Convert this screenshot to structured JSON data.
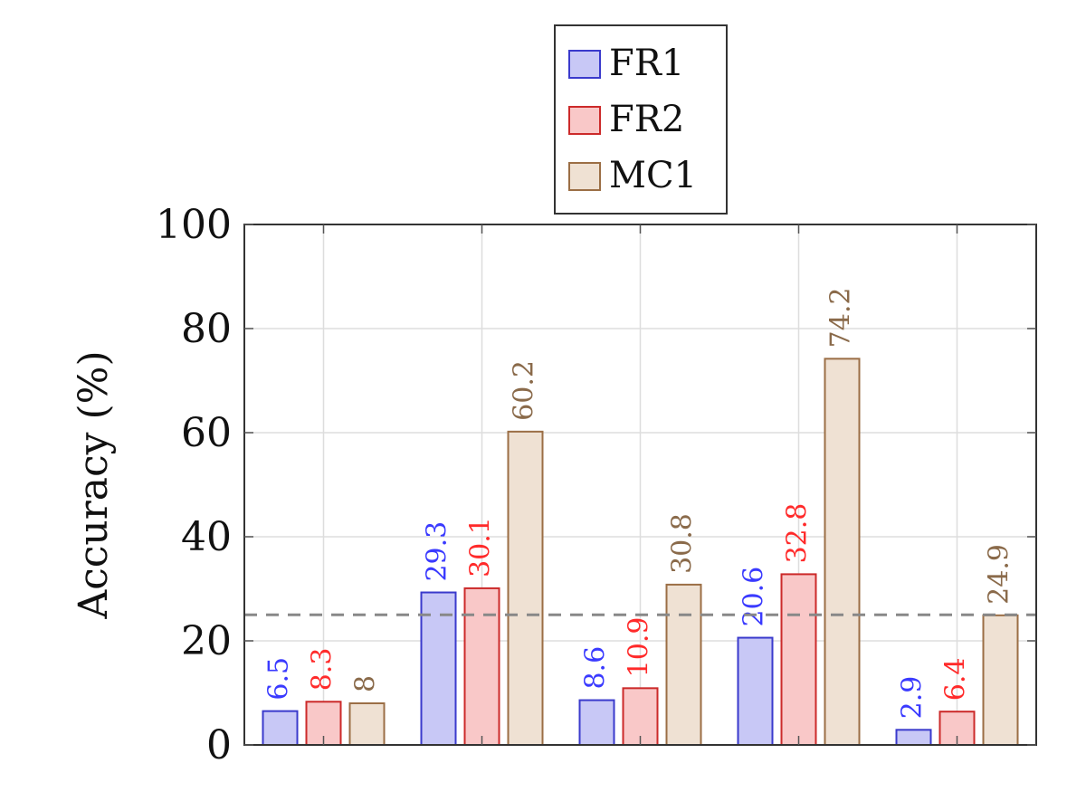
{
  "chart_data": {
    "type": "bar",
    "categories": [
      "",
      "",
      "",
      "",
      ""
    ],
    "series": [
      {
        "name": "FR1",
        "values": [
          6.5,
          29.3,
          8.6,
          20.6,
          2.9
        ],
        "fill": "#c8c8f6",
        "stroke": "#3a3acc",
        "label_color": "#3a3aff"
      },
      {
        "name": "FR2",
        "values": [
          8.3,
          30.1,
          10.9,
          32.8,
          6.4
        ],
        "fill": "#f9c8c8",
        "stroke": "#cc2a2a",
        "label_color": "#ff2a2a"
      },
      {
        "name": "MC1",
        "values": [
          8,
          60.2,
          30.8,
          74.2,
          24.9
        ],
        "fill": "#efe1d3",
        "stroke": "#9b6e45",
        "label_color": "#8a6a4a"
      }
    ],
    "ylabel": "Accuracy (%)",
    "ylim": [
      0,
      100
    ],
    "yticks": [
      0,
      20,
      40,
      60,
      80,
      100
    ],
    "reference_line": {
      "value": 25,
      "style": "dashed",
      "color": "#888888"
    },
    "grid": true,
    "legend_position": "top-center"
  }
}
